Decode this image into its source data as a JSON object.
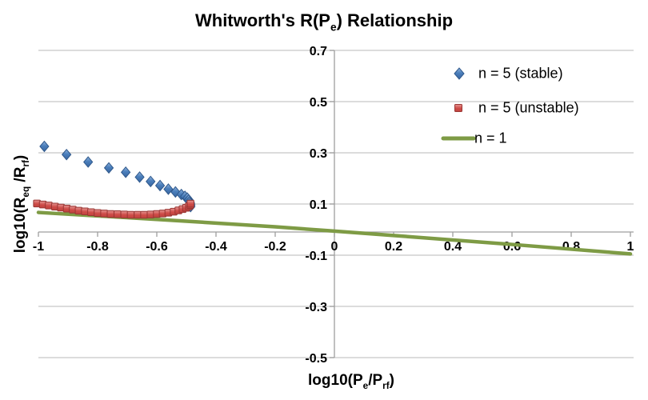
{
  "chart_data": {
    "type": "scatter",
    "title": "Whitworth's R(Pe) Relationship",
    "title_parts": {
      "p1": "Whitworth's R(P",
      "s1": "e",
      "p2": ") Relationship"
    },
    "xlabel": "log10(Pe/Prf)",
    "xlabel_parts": {
      "p1": "log10(P",
      "s1": "e",
      "p2": "/P",
      "s2": "rf",
      "p3": ")"
    },
    "ylabel": "log10(Req/Rrf)",
    "ylabel_parts": {
      "p1": "log10(R",
      "s1": "eq",
      "p2": " /R",
      "s2": "rf",
      "p3": ")"
    },
    "xlim": [
      -1,
      1
    ],
    "ylim": [
      -0.5,
      0.7
    ],
    "x_tick_values": [
      -1,
      -0.8,
      -0.6,
      -0.4,
      -0.2,
      0,
      0.2,
      0.4,
      0.6,
      0.8,
      1
    ],
    "x_tick_labels": [
      "-1",
      "-0.8",
      "-0.6",
      "-0.4",
      "-0.2",
      "0",
      "0.2",
      "0.4",
      "0.6",
      "0.8",
      "1"
    ],
    "y_tick_values": [
      0.7,
      0.5,
      0.3,
      0.1,
      -0.1,
      -0.3,
      -0.5
    ],
    "y_tick_labels": [
      "0.7",
      "0.5",
      "0.3",
      "0.1",
      "-0.1",
      "-0.3",
      "-0.5"
    ],
    "grid": "horizontal-gridlines-on",
    "grid_color": "#C6C6C6",
    "axis_color": "#9E9E9E",
    "legend_position": "upper-right",
    "series": [
      {
        "name": "n = 5 (stable)",
        "marker": "diamond",
        "color": "#4A7EBB",
        "border": "#30598C",
        "points": [
          [
            -0.98,
            0.325
          ],
          [
            -0.905,
            0.293
          ],
          [
            -0.832,
            0.264
          ],
          [
            -0.762,
            0.241
          ],
          [
            -0.705,
            0.224
          ],
          [
            -0.658,
            0.205
          ],
          [
            -0.621,
            0.188
          ],
          [
            -0.589,
            0.172
          ],
          [
            -0.561,
            0.158
          ],
          [
            -0.537,
            0.147
          ],
          [
            -0.517,
            0.137
          ],
          [
            -0.505,
            0.13
          ],
          [
            -0.497,
            0.123
          ],
          [
            -0.492,
            0.116
          ],
          [
            -0.489,
            0.109
          ],
          [
            -0.487,
            0.103
          ],
          [
            -0.486,
            0.096
          ],
          [
            -0.486,
            0.09
          ]
        ]
      },
      {
        "name": "n = 5 (unstable)",
        "marker": "square",
        "color": "#CE4B47",
        "border": "#9A3734",
        "points": [
          [
            -1.005,
            0.102
          ],
          [
            -0.985,
            0.098
          ],
          [
            -0.965,
            0.094
          ],
          [
            -0.944,
            0.09
          ],
          [
            -0.924,
            0.086
          ],
          [
            -0.904,
            0.082
          ],
          [
            -0.884,
            0.078
          ],
          [
            -0.864,
            0.074
          ],
          [
            -0.843,
            0.071
          ],
          [
            -0.822,
            0.068
          ],
          [
            -0.8,
            0.065
          ],
          [
            -0.778,
            0.063
          ],
          [
            -0.756,
            0.061
          ],
          [
            -0.733,
            0.06
          ],
          [
            -0.71,
            0.059
          ],
          [
            -0.688,
            0.058
          ],
          [
            -0.665,
            0.058
          ],
          [
            -0.643,
            0.058
          ],
          [
            -0.621,
            0.059
          ],
          [
            -0.6,
            0.061
          ],
          [
            -0.58,
            0.063
          ],
          [
            -0.561,
            0.066
          ],
          [
            -0.543,
            0.07
          ],
          [
            -0.527,
            0.075
          ],
          [
            -0.513,
            0.08
          ],
          [
            -0.501,
            0.085
          ],
          [
            -0.492,
            0.091
          ],
          [
            -0.487,
            0.096
          ],
          [
            -0.486,
            0.101
          ]
        ]
      },
      {
        "name": "n = 1",
        "marker": "line",
        "color": "#7E9B45",
        "border": "#7E9B45",
        "points": [
          [
            -1.0,
            0.067
          ],
          [
            -0.6,
            0.04
          ],
          [
            -0.2,
            0.011
          ],
          [
            0.0,
            -0.006
          ],
          [
            0.2,
            -0.023
          ],
          [
            0.6,
            -0.058
          ],
          [
            1.0,
            -0.095
          ]
        ]
      }
    ]
  }
}
